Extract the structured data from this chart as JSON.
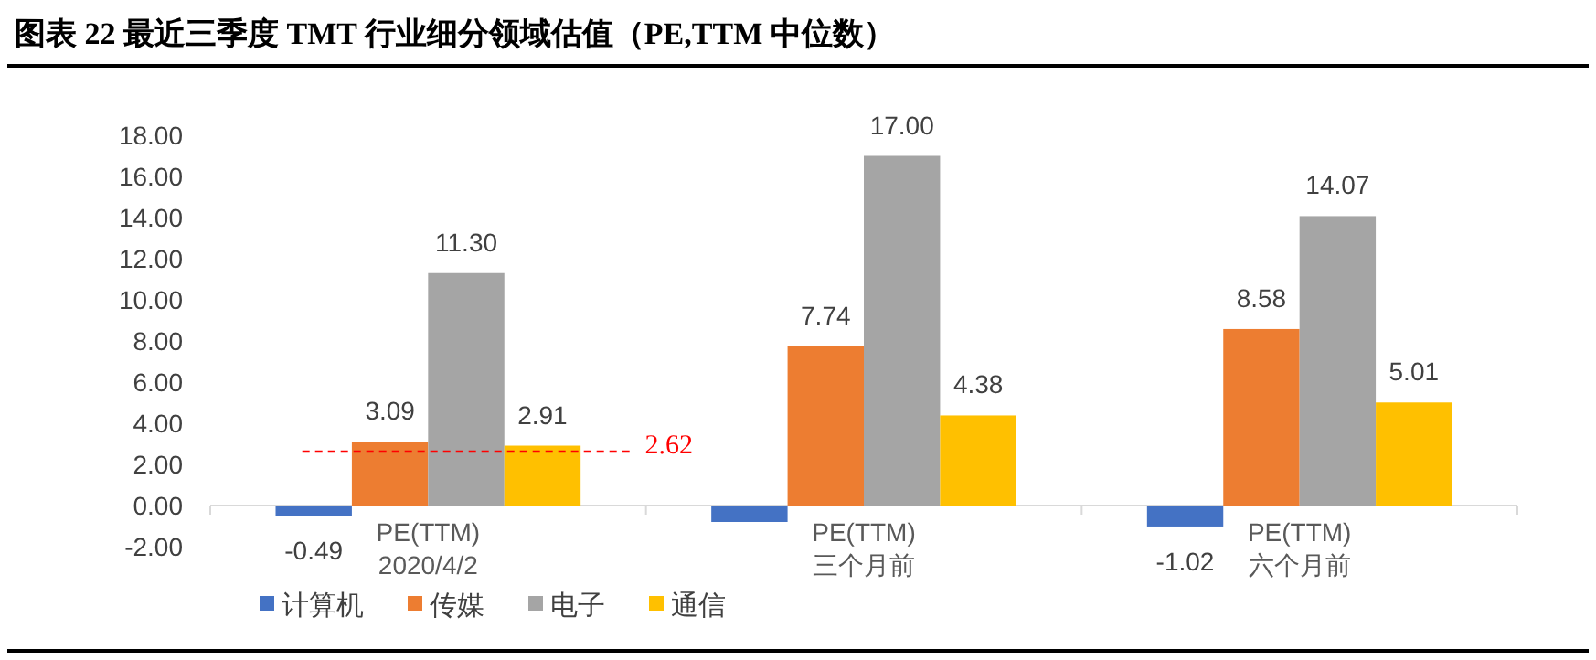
{
  "chart_data": {
    "type": "bar",
    "title": "图表 22 最近三季度 TMT 行业细分领域估值（PE,TTM 中位数）",
    "categories": [
      "PE(TTM)\n2020/4/2",
      "PE(TTM)\n三个月前",
      "PE(TTM)\n六个月前"
    ],
    "series": [
      {
        "name": "计算机",
        "color": "#4472c4",
        "values": [
          -0.49,
          -0.8,
          -1.02
        ],
        "value_labels": [
          "-0.49",
          null,
          "-1.02"
        ]
      },
      {
        "name": "传媒",
        "color": "#ed7d31",
        "values": [
          3.09,
          7.74,
          8.58
        ],
        "value_labels": [
          "3.09",
          "7.74",
          "8.58"
        ]
      },
      {
        "name": "电子",
        "color": "#a5a5a5",
        "values": [
          11.3,
          17.0,
          14.07
        ],
        "value_labels": [
          "11.30",
          "17.00",
          "14.07"
        ]
      },
      {
        "name": "通信",
        "color": "#ffc000",
        "values": [
          2.91,
          4.38,
          5.01
        ],
        "value_labels": [
          "2.91",
          "4.38",
          "5.01"
        ]
      }
    ],
    "ylim": [
      -2,
      18
    ],
    "yticks": [
      {
        "value": -2,
        "label": "-2.00"
      },
      {
        "value": 0,
        "label": "0.00"
      },
      {
        "value": 2,
        "label": "2.00"
      },
      {
        "value": 4,
        "label": "4.00"
      },
      {
        "value": 6,
        "label": "6.00"
      },
      {
        "value": 8,
        "label": "8.00"
      },
      {
        "value": 10,
        "label": "10.00"
      },
      {
        "value": 12,
        "label": "12.00"
      },
      {
        "value": 14,
        "label": "14.00"
      },
      {
        "value": 16,
        "label": "16.00"
      },
      {
        "value": 18,
        "label": "18.00"
      }
    ],
    "grid": false,
    "legend": "bottom",
    "ref_lines": [
      {
        "axis": "y",
        "value": 2.62,
        "label": "2.62",
        "color": "#ff0000",
        "line_style": "dashed"
      }
    ]
  }
}
